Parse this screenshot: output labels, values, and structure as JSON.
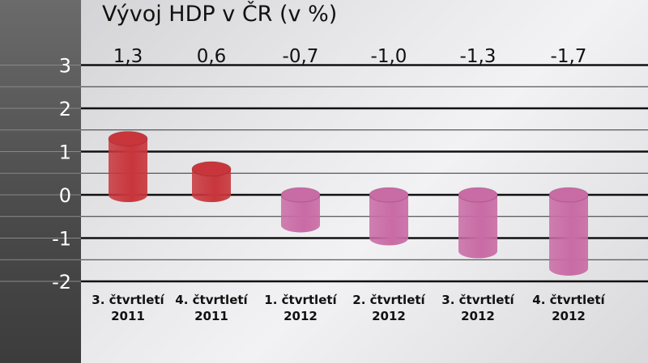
{
  "chart_data": {
    "type": "bar",
    "title": "Vývoj HDP v ČR (v %)",
    "categories": [
      [
        "3. čtvrtletí",
        "2011"
      ],
      [
        "4. čtvrtletí",
        "2011"
      ],
      [
        "1. čtvrtletí",
        "2012"
      ],
      [
        "2. čtvrtletí",
        "2012"
      ],
      [
        "3. čtvrtletí",
        "2012"
      ],
      [
        "4. čtvrtletí",
        "2012"
      ]
    ],
    "values": [
      1.3,
      0.6,
      -0.7,
      -1.0,
      -1.3,
      -1.7
    ],
    "data_labels": [
      "1,3",
      "0,6",
      "-0,7",
      "-1,0",
      "-1,3",
      "-1,7"
    ],
    "yticks": [
      "3",
      "2",
      "1",
      "0",
      "-1",
      "-2"
    ],
    "ylim": [
      -2,
      3
    ],
    "grid": true,
    "colors": {
      "positive": "#c8363c",
      "negative": "#c96ba5"
    }
  }
}
